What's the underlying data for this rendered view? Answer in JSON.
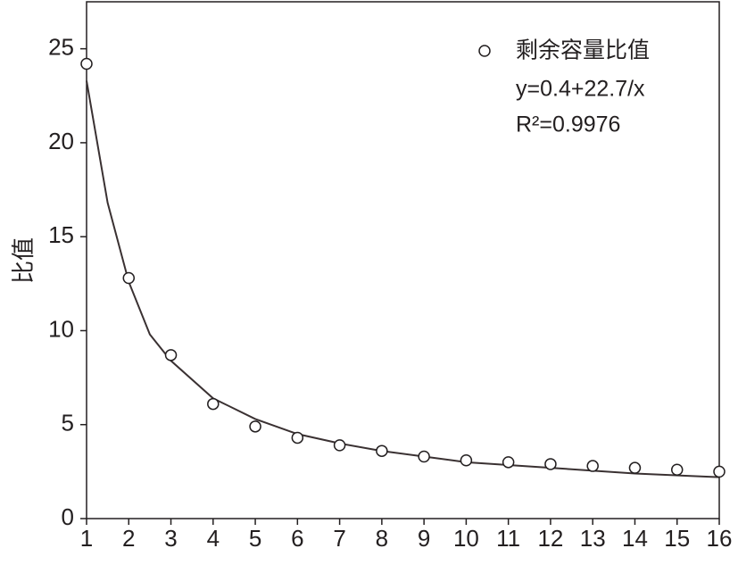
{
  "chart_data": {
    "type": "scatter",
    "ylabel": "比值",
    "annotations": [
      "y=0.4+22.7/x",
      "R²=0.9976"
    ],
    "series": [
      {
        "name": "剩余容量比值",
        "color": "#231f20",
        "x": [
          1,
          2,
          3,
          4,
          5,
          6,
          7,
          8,
          9,
          10,
          11,
          12,
          13,
          14,
          15,
          16
        ],
        "values": [
          24.2,
          12.8,
          8.7,
          6.1,
          4.9,
          4.3,
          3.9,
          3.6,
          3.3,
          3.1,
          3.0,
          2.9,
          2.8,
          2.7,
          2.6,
          2.5
        ]
      },
      {
        "color": "#3a3132",
        "x": [
          1,
          1.5,
          2,
          2.5,
          3,
          4,
          5,
          6,
          7,
          8,
          9,
          10,
          12,
          14,
          16
        ],
        "values": [
          23.3,
          16.8,
          12.6,
          9.8,
          8.4,
          6.4,
          5.3,
          4.5,
          4.0,
          3.6,
          3.3,
          3.0,
          2.7,
          2.4,
          2.2
        ]
      }
    ],
    "xlim": [
      1,
      16
    ],
    "xticks": [
      1,
      2,
      3,
      4,
      5,
      6,
      7,
      8,
      9,
      10,
      11,
      12,
      13,
      14,
      15,
      16
    ],
    "ylim": [
      0,
      27.5
    ],
    "yticks": [
      0,
      5,
      10,
      15,
      20,
      25
    ]
  }
}
